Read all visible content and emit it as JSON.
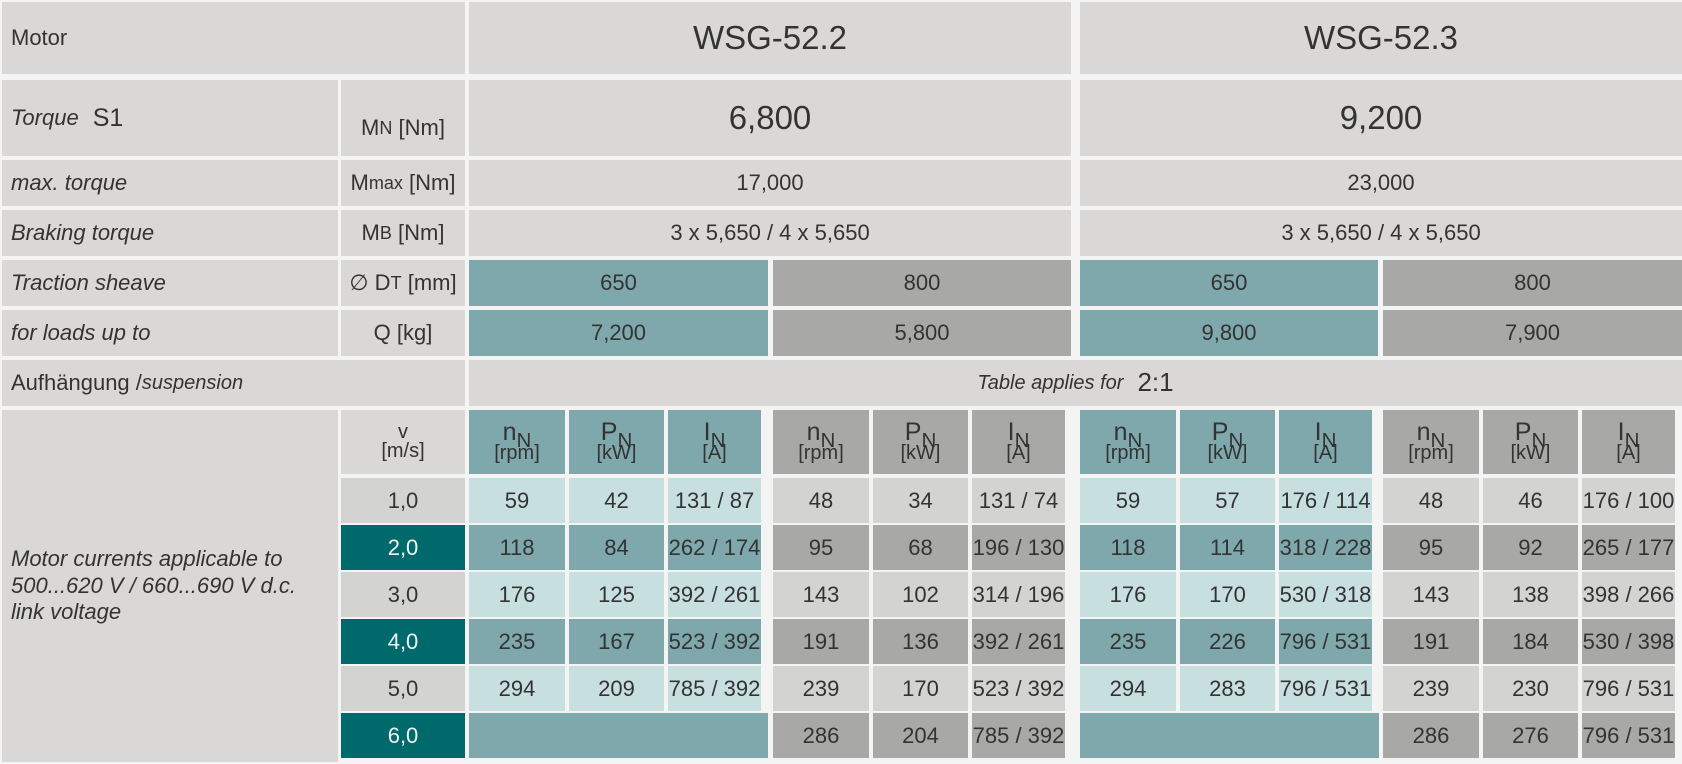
{
  "header": {
    "motor_label": "Motor",
    "models": [
      "WSG-52.2",
      "WSG-52.3"
    ]
  },
  "rows": {
    "torque_s1": {
      "label": "Torque",
      "suffix": "S1",
      "symbol": "M",
      "sub": "N",
      "unit": "[Nm]",
      "values": [
        "6,800",
        "9,200"
      ]
    },
    "max_torque": {
      "label": "max. torque",
      "symbol": "M",
      "sub": "max",
      "unit": "[Nm]",
      "values": [
        "17,000",
        "23,000"
      ]
    },
    "braking_torque": {
      "label": "Braking torque",
      "symbol": "M",
      "sub": "B",
      "unit": "[Nm]",
      "values": [
        "3 x 5,650 / 4 x 5,650",
        "3 x 5,650 / 4 x 5,650"
      ]
    },
    "traction_sheave": {
      "label": "Traction sheave",
      "symbol": "∅ D",
      "sub": "T",
      "unit": "[mm]",
      "values": [
        "650",
        "800",
        "650",
        "800"
      ]
    },
    "loads": {
      "label": "for loads up to",
      "symbol": "Q [kg]",
      "values": [
        "7,200",
        "5,800",
        "9,800",
        "7,900"
      ]
    },
    "suspension": {
      "label_de": "Aufhängung /",
      "label_en": "suspension",
      "note": "Table applies for",
      "ratio": "2:1"
    }
  },
  "currents": {
    "label": "Motor currents applicable to 500...620 V / 660...690 V d.c. link voltage",
    "v_symbol": "v",
    "v_unit": "[m/s]",
    "col_headers": [
      {
        "sym": "n",
        "sub": "N",
        "unit": "[rpm]"
      },
      {
        "sym": "P",
        "sub": "N",
        "unit": "[kW]"
      },
      {
        "sym": "I",
        "sub": "N",
        "unit": "[A]"
      }
    ],
    "speeds": [
      "1,0",
      "2,0",
      "3,0",
      "4,0",
      "5,0",
      "6,0"
    ],
    "data": [
      [
        [
          "59",
          "42",
          "131 / 87"
        ],
        [
          "48",
          "34",
          "131 / 74"
        ],
        [
          "59",
          "57",
          "176 / 114"
        ],
        [
          "48",
          "46",
          "176 / 100"
        ]
      ],
      [
        [
          "118",
          "84",
          "262 / 174"
        ],
        [
          "95",
          "68",
          "196 / 130"
        ],
        [
          "118",
          "114",
          "318 / 228"
        ],
        [
          "95",
          "92",
          "265 / 177"
        ]
      ],
      [
        [
          "176",
          "125",
          "392 / 261"
        ],
        [
          "143",
          "102",
          "314 / 196"
        ],
        [
          "176",
          "170",
          "530 / 318"
        ],
        [
          "143",
          "138",
          "398 / 266"
        ]
      ],
      [
        [
          "235",
          "167",
          "523 / 392"
        ],
        [
          "191",
          "136",
          "392 / 261"
        ],
        [
          "235",
          "226",
          "796 / 531"
        ],
        [
          "191",
          "184",
          "530 / 398"
        ]
      ],
      [
        [
          "294",
          "209",
          "785 / 392"
        ],
        [
          "239",
          "170",
          "523 / 392"
        ],
        [
          "294",
          "283",
          "796 / 531"
        ],
        [
          "239",
          "230",
          "796 / 531"
        ]
      ],
      [
        null,
        [
          "286",
          "204",
          "785 / 392"
        ],
        null,
        [
          "286",
          "276",
          "796 / 531"
        ]
      ]
    ]
  },
  "colors": {
    "grey_cell": "#d9d8d7",
    "teal": "#7ea8ab",
    "teal_light": "#c8dfdf",
    "teal_dark": "#00696c",
    "grey_dark": "#a8a8a7",
    "grey_light": "#d3d3d2"
  }
}
